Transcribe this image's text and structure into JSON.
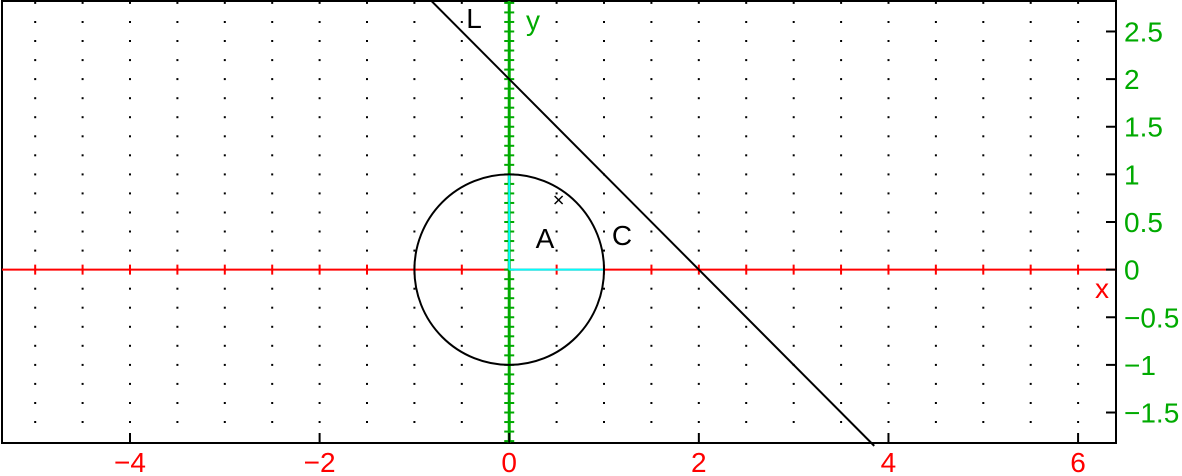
{
  "chart_data": {
    "type": "scatter",
    "x_axis_label": "x",
    "y_axis_label": "y",
    "xlim": [
      -5.35,
      6.4
    ],
    "ylim": [
      -1.82,
      2.82
    ],
    "x_ticks": [
      "−4",
      "−2",
      "0",
      "2",
      "4",
      "6"
    ],
    "x_tick_values": [
      -4,
      -2,
      0,
      2,
      4,
      6
    ],
    "y_ticks": [
      "2.5",
      "2",
      "1.5",
      "1",
      "0.5",
      "0",
      "−0.5",
      "−1",
      "−1.5"
    ],
    "y_tick_values": [
      2.5,
      2,
      1.5,
      1,
      0.5,
      0,
      -0.5,
      -1,
      -1.5
    ],
    "grid": "dotted",
    "colors": {
      "x_axis": "#ff0000",
      "y_axis": "#00aa00",
      "radius": "#00ffff",
      "objects": "#000000"
    },
    "objects": {
      "line": {
        "label": "L",
        "points": [
          [
            -0.85,
            2.85
          ],
          [
            3.85,
            -1.85
          ]
        ]
      },
      "circle": {
        "label": "C",
        "center": [
          0,
          0
        ],
        "radius": 1
      },
      "point": {
        "label": "A",
        "x": 0.5,
        "y": 0.5
      }
    }
  }
}
